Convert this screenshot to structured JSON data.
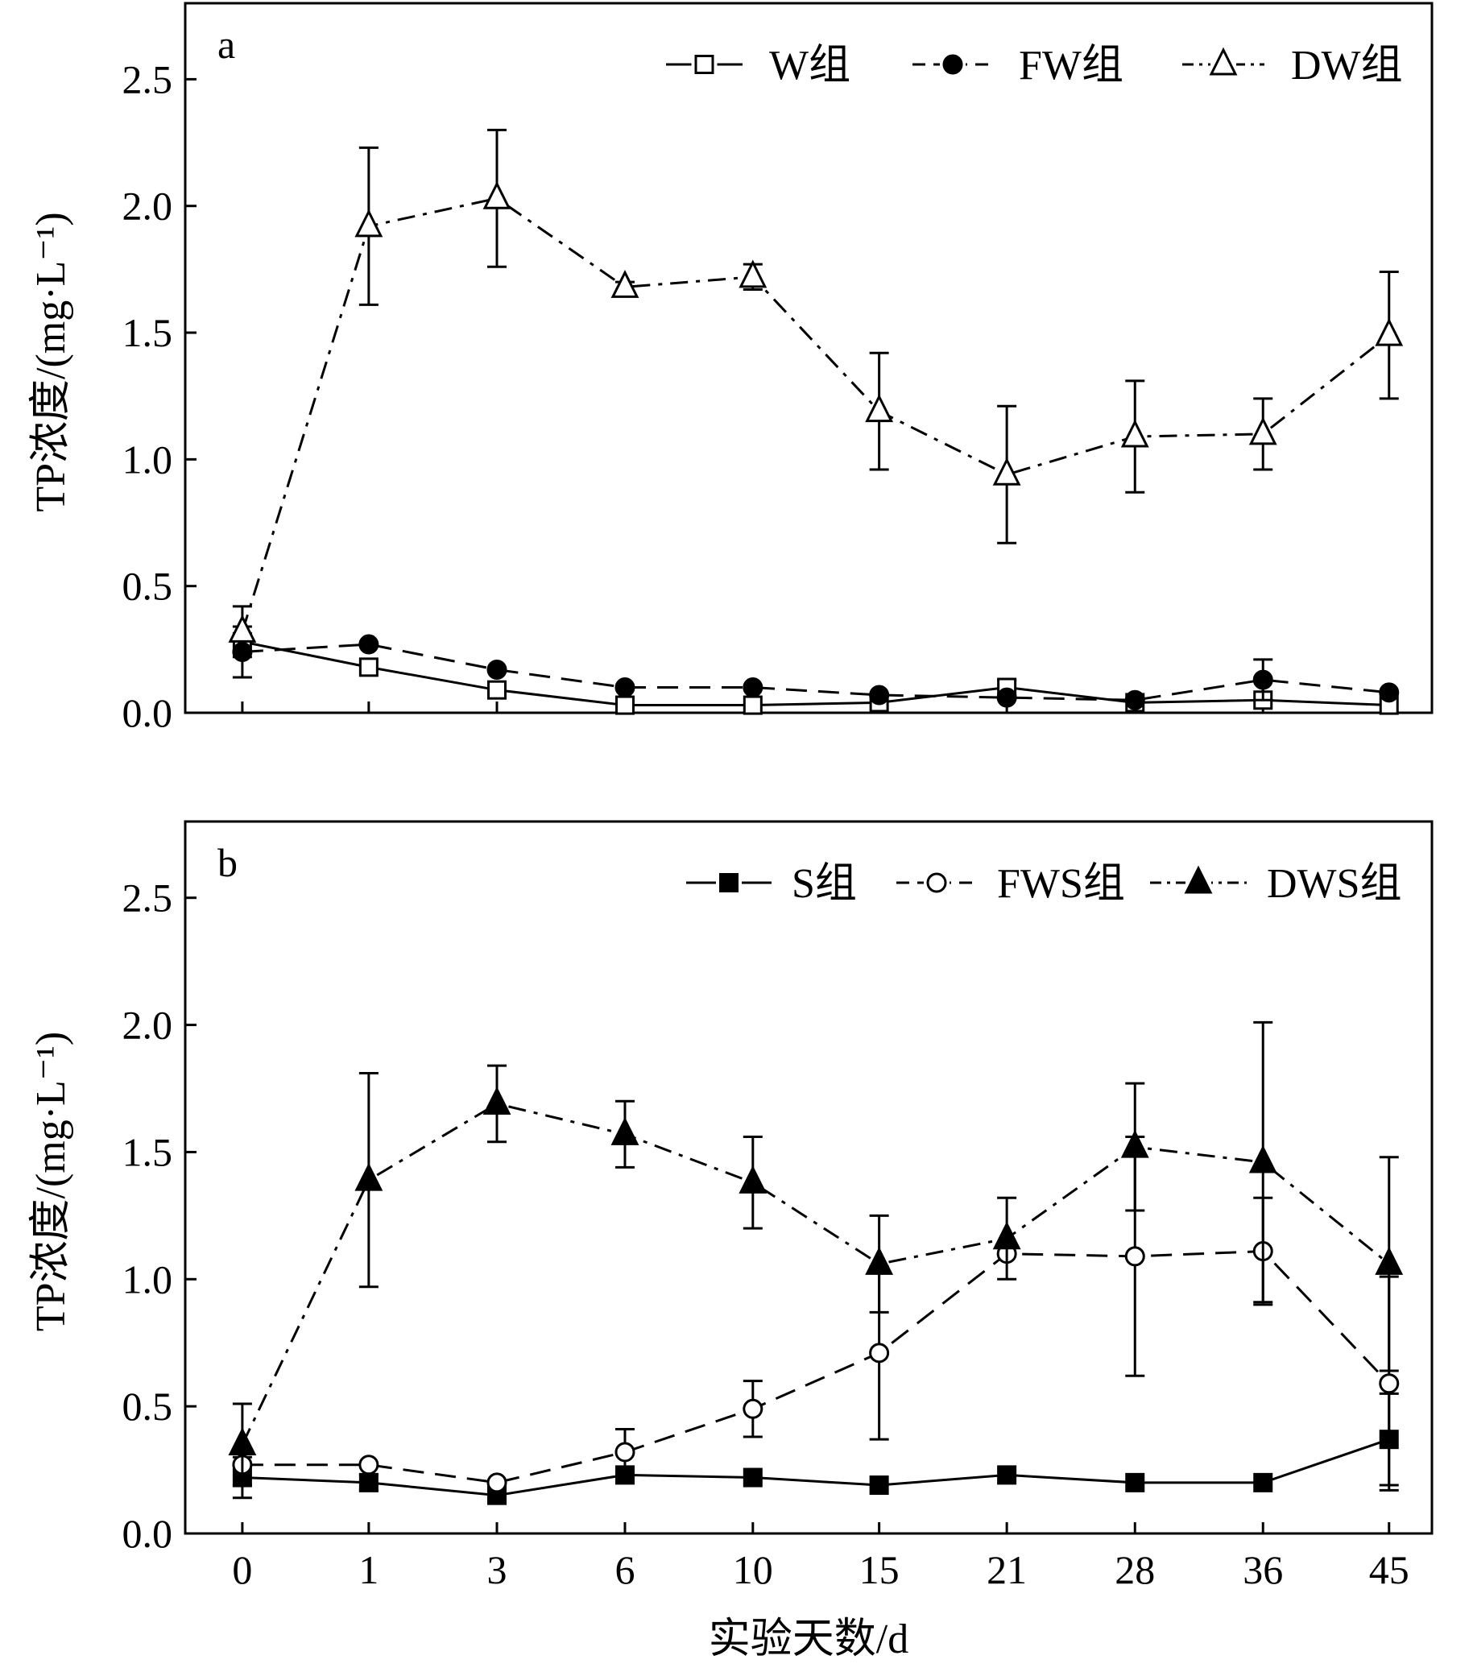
{
  "chart_data": [
    {
      "type": "line",
      "panel_label": "a",
      "ylabel": "TP浓度/(mg·L⁻¹)",
      "xlabel": "",
      "categories": [
        "0",
        "1",
        "3",
        "6",
        "10",
        "15",
        "21",
        "28",
        "36",
        "45"
      ],
      "ylim": [
        0,
        2.8
      ],
      "yticks": [
        "0.0",
        "0.5",
        "1.0",
        "1.5",
        "2.0",
        "2.5"
      ],
      "legend_position": "top-right",
      "series": [
        {
          "name": "W组",
          "marker": "square-open",
          "line_style": "solid",
          "values": [
            0.28,
            0.18,
            0.09,
            0.03,
            0.03,
            0.04,
            0.1,
            0.04,
            0.05,
            0.03
          ],
          "errors": [
            0.0,
            0.0,
            0.0,
            0.0,
            0.0,
            0.0,
            0.03,
            0.0,
            0.0,
            0.0
          ]
        },
        {
          "name": "FW组",
          "marker": "circle-filled",
          "line_style": "dashed",
          "values": [
            0.24,
            0.27,
            0.17,
            0.1,
            0.1,
            0.07,
            0.06,
            0.05,
            0.13,
            0.08
          ],
          "errors": [
            0.1,
            0.0,
            0.0,
            0.0,
            0.0,
            0.0,
            0.0,
            0.0,
            0.08,
            0.0
          ]
        },
        {
          "name": "DW组",
          "marker": "triangle-open",
          "line_style": "dashdot",
          "values": [
            0.32,
            1.92,
            2.03,
            1.68,
            1.72,
            1.19,
            0.94,
            1.09,
            1.1,
            1.49
          ],
          "errors": [
            0.1,
            0.31,
            0.27,
            0.02,
            0.05,
            0.23,
            0.27,
            0.22,
            0.14,
            0.25
          ]
        }
      ]
    },
    {
      "type": "line",
      "panel_label": "b",
      "ylabel": "TP浓度/(mg·L⁻¹)",
      "xlabel": "实验天数/d",
      "categories": [
        "0",
        "1",
        "3",
        "6",
        "10",
        "15",
        "21",
        "28",
        "36",
        "45"
      ],
      "ylim": [
        0,
        2.8
      ],
      "yticks": [
        "0.0",
        "0.5",
        "1.0",
        "1.5",
        "2.0",
        "2.5"
      ],
      "legend_position": "top-right",
      "series": [
        {
          "name": "S组",
          "marker": "square-filled",
          "line_style": "solid",
          "values": [
            0.22,
            0.2,
            0.15,
            0.23,
            0.22,
            0.19,
            0.23,
            0.2,
            0.2,
            0.37
          ],
          "errors": [
            0.08,
            0.03,
            0.0,
            0.0,
            0.0,
            0.0,
            0.0,
            0.0,
            0.0,
            0.18
          ]
        },
        {
          "name": "FWS组",
          "marker": "circle-open",
          "line_style": "dashed",
          "values": [
            0.27,
            0.27,
            0.2,
            0.32,
            0.49,
            0.71,
            1.1,
            1.09,
            1.11,
            0.59
          ],
          "errors": [
            0.0,
            0.0,
            0.0,
            0.09,
            0.11,
            0.34,
            0.0,
            0.47,
            0.21,
            0.42
          ]
        },
        {
          "name": "DWS组",
          "marker": "triangle-filled",
          "line_style": "dashdot",
          "values": [
            0.35,
            1.39,
            1.69,
            1.57,
            1.38,
            1.06,
            1.16,
            1.52,
            1.46,
            1.06
          ],
          "errors": [
            0.16,
            0.42,
            0.15,
            0.13,
            0.18,
            0.19,
            0.16,
            0.25,
            0.55,
            0.42
          ]
        }
      ]
    }
  ]
}
